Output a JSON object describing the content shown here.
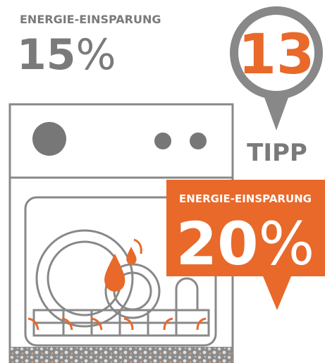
{
  "savings_now": {
    "label": "ENERGIE-EINSPARUNG",
    "number": "15",
    "unit": "%"
  },
  "tip": {
    "number": "13",
    "label": "TIPP"
  },
  "savings_tip": {
    "label": "ENERGIE-EINSPARUNG",
    "number": "20",
    "unit": "%"
  }
}
